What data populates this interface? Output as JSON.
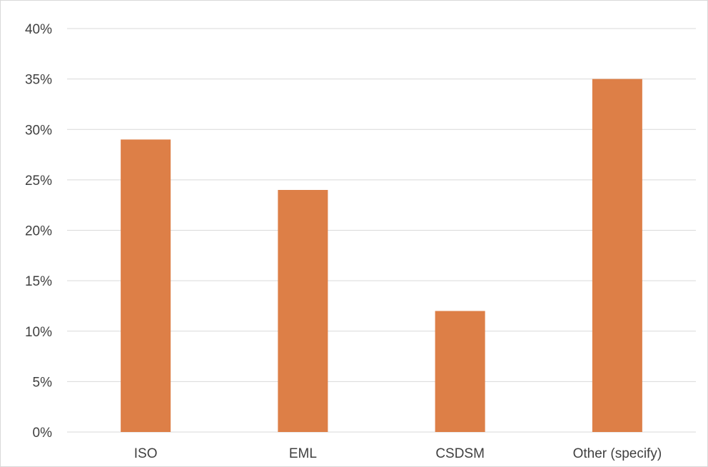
{
  "chart_data": {
    "type": "bar",
    "title": "",
    "xlabel": "",
    "ylabel": "",
    "categories": [
      "ISO",
      "EML",
      "CSDSM",
      "Other (specify)"
    ],
    "values": [
      29,
      24,
      12,
      35
    ],
    "y_ticks": [
      "0%",
      "5%",
      "10%",
      "15%",
      "20%",
      "25%",
      "30%",
      "35%",
      "40%"
    ],
    "ylim": [
      0,
      40
    ],
    "y_unit": "%",
    "grid": true,
    "legend": "none",
    "bar_color": "#dd7f47"
  }
}
